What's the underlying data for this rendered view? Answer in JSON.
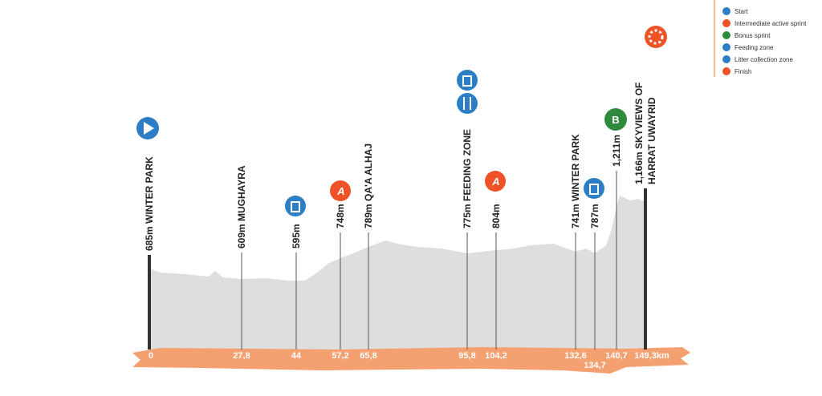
{
  "legend": [
    "Start",
    "Intermediate active sprint",
    "Bonus sprint",
    "Feeding zone",
    "Litter collection zone",
    "Finish"
  ],
  "icons": {
    "sprint": "A",
    "bonus": "B"
  },
  "waypoints": [
    {
      "label": [
        "685m WINTER PARK"
      ],
      "km": "0"
    },
    {
      "label": [
        "609m MUGHAYRA"
      ],
      "km": "27,8"
    },
    {
      "label": [
        "595m"
      ],
      "km": "44"
    },
    {
      "label": [
        "748m"
      ],
      "km": "57,2"
    },
    {
      "label": [
        "789m QA'A ALHAJ"
      ],
      "km": "65,8"
    },
    {
      "label": [
        "775m FEEDING ZONE"
      ],
      "km": "95,8"
    },
    {
      "label": [
        "804m"
      ],
      "km": "104,2"
    },
    {
      "label": [
        "741m WINTER PARK"
      ],
      "km": "132,6"
    },
    {
      "label": [
        "787m"
      ],
      "km": "134,7"
    },
    {
      "label": [
        "1,211m"
      ],
      "km": "140,7"
    },
    {
      "label": [
        "1,166m SKYVIEWS OF",
        "HARRAT UWAYRID"
      ],
      "km": "149,3km"
    }
  ]
}
